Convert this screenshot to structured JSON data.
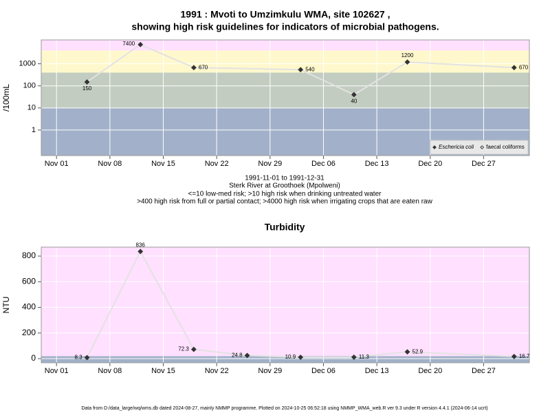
{
  "chart_data": [
    {
      "type": "line",
      "title": [
        "1991 : Mvoti to Umzimkulu WMA, site 102627 ,",
        "showing high risk guidelines for indicators of microbial pathogens."
      ],
      "y_label": "/100mL",
      "notes": [
        "1991-11-01 to 1991-12-31",
        "Sterk River at Groothoek (Mpolweni)",
        "<=10 low-med risk; >10 high risk when drinking untreated water",
        ">400 high risk from full or partial contact; >4000 high risk when irrigating crops that are eaten raw"
      ],
      "x": [
        "1991-11-05",
        "1991-11-12",
        "1991-11-19",
        "1991-12-03",
        "1991-12-10",
        "1991-12-17",
        "1991-12-31"
      ],
      "series": [
        {
          "name": "Eschericia coli",
          "color": "#333333",
          "marker": "filled",
          "values": [
            150,
            7400,
            670,
            540,
            40,
            1200,
            670
          ]
        },
        {
          "name": "faecal coliforms",
          "color": "#333333",
          "marker": "open",
          "values": [
            null,
            null,
            null,
            null,
            null,
            null,
            null
          ]
        }
      ],
      "line_color": "#e2e2e2",
      "xlim": [
        "1991-10-30",
        "1992-01-02"
      ],
      "xticks": [
        {
          "value": "1991-11-01",
          "label": "Nov 01"
        },
        {
          "value": "1991-11-08",
          "label": "Nov 08"
        },
        {
          "value": "1991-11-15",
          "label": "Nov 15"
        },
        {
          "value": "1991-11-22",
          "label": "Nov 22"
        },
        {
          "value": "1991-11-29",
          "label": "Nov 29"
        },
        {
          "value": "1991-12-06",
          "label": "Dec 06"
        },
        {
          "value": "1991-12-13",
          "label": "Dec 13"
        },
        {
          "value": "1991-12-20",
          "label": "Dec 20"
        },
        {
          "value": "1991-12-27",
          "label": "Dec 27"
        }
      ],
      "log_scale": true,
      "ylim": [
        0.07,
        12000
      ],
      "yticks": [
        1,
        10,
        100,
        1000
      ],
      "thresholds": [
        10,
        400,
        4000
      ],
      "band_colors": [
        "#a2b1c9",
        "#c3ccc0",
        "#fff8cc",
        "#ffe0ff"
      ],
      "grid": true,
      "legend": "bottom right"
    },
    {
      "type": "line",
      "title": "Turbidity",
      "y_label": "NTU",
      "x": [
        "1991-11-05",
        "1991-11-12",
        "1991-11-19",
        "1991-11-26",
        "1991-12-03",
        "1991-12-10",
        "1991-12-17",
        "1991-12-31"
      ],
      "series": [
        {
          "color": "#333333",
          "marker": "filled",
          "values": [
            8.3,
            836,
            72.3,
            24.8,
            10.9,
            11.3,
            52.9,
            16.7
          ]
        }
      ],
      "line_color": "#e2e2e2",
      "xlim": [
        "1991-10-30",
        "1992-01-02"
      ],
      "xticks": [
        {
          "value": "1991-11-01",
          "label": "Nov 01"
        },
        {
          "value": "1991-11-08",
          "label": "Nov 08"
        },
        {
          "value": "1991-11-15",
          "label": "Nov 15"
        },
        {
          "value": "1991-11-22",
          "label": "Nov 22"
        },
        {
          "value": "1991-11-29",
          "label": "Nov 29"
        },
        {
          "value": "1991-12-06",
          "label": "Dec 06"
        },
        {
          "value": "1991-12-13",
          "label": "Dec 13"
        },
        {
          "value": "1991-12-20",
          "label": "Dec 20"
        },
        {
          "value": "1991-12-27",
          "label": "Dec 27"
        }
      ],
      "log_scale": false,
      "ylim": [
        -32,
        870
      ],
      "yticks": [
        0,
        200,
        400,
        600,
        800
      ],
      "thresholds": [
        20
      ],
      "band_colors": [
        "#a2b1c9",
        "#ffe0ff"
      ],
      "grid": true
    }
  ],
  "footer": "Data from D:/data_large/wq/wms.db dated 2024-08-27, mainly NMMP programme. Plotted on 2024-10-25 06:52:18 using NMMP_WMA_web.R ver 9.3 under R version 4.4.1 (2024-06-14 ucrt)"
}
